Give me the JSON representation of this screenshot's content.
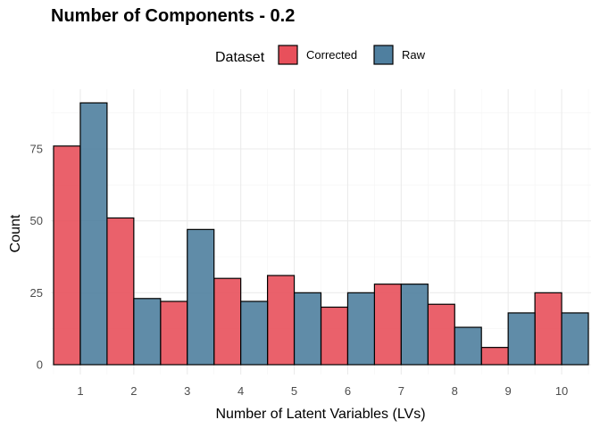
{
  "chart_data": {
    "type": "bar",
    "title": "Number of Components - 0.2",
    "xlabel": "Number of Latent Variables (LVs)",
    "ylabel": "Count",
    "categories": [
      "1",
      "2",
      "3",
      "4",
      "5",
      "6",
      "7",
      "8",
      "9",
      "10"
    ],
    "series": [
      {
        "name": "Corrected",
        "color": "#e8505b",
        "values": [
          76,
          51,
          22,
          30,
          31,
          20,
          28,
          21,
          6,
          25
        ]
      },
      {
        "name": "Raw",
        "color": "#4f7f9f",
        "values": [
          91,
          23,
          47,
          22,
          25,
          25,
          28,
          13,
          18,
          18
        ]
      }
    ],
    "ylim": [
      0,
      95
    ],
    "yticks": [
      0,
      25,
      50,
      75
    ],
    "legend_title": "Dataset",
    "legend_position": "top",
    "grid": true
  }
}
